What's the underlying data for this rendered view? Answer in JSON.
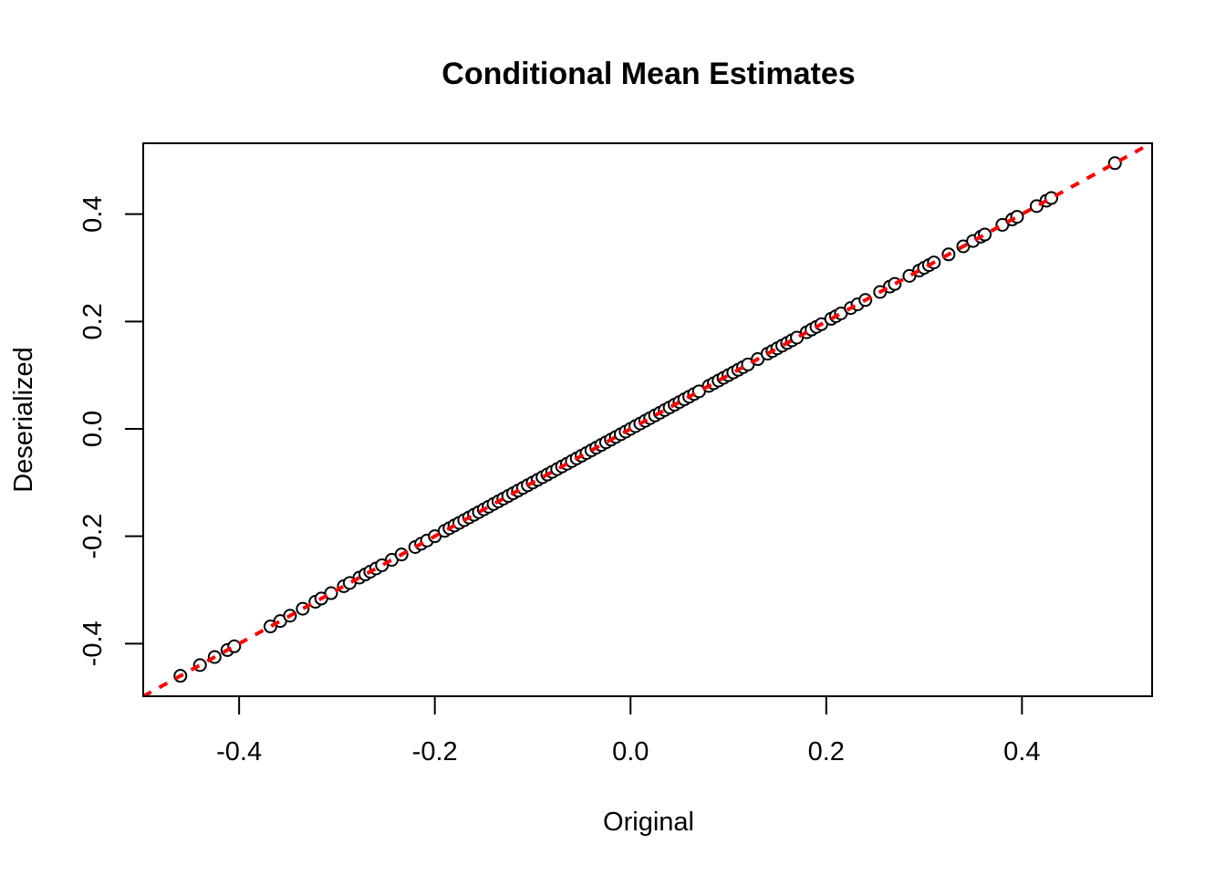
{
  "chart_data": {
    "type": "scatter",
    "title": "Conditional Mean Estimates",
    "xlabel": "Original",
    "ylabel": "Deserialized",
    "xlim": [
      -0.498,
      0.533
    ],
    "ylim": [
      -0.498,
      0.532
    ],
    "xticks": [
      -0.4,
      -0.2,
      0.0,
      0.2,
      0.4
    ],
    "xtick_labels": [
      "-0.4",
      "-0.2",
      "0.0",
      "0.2",
      "0.4"
    ],
    "yticks": [
      -0.4,
      -0.2,
      0.0,
      0.2,
      0.4
    ],
    "ytick_labels": [
      "-0.4",
      "-0.2",
      "0.0",
      "0.2",
      "0.4"
    ],
    "grid": false,
    "reference_line": {
      "intercept": 0,
      "slope": 1,
      "color": "#ff0000",
      "style": "dashed"
    },
    "point_color": "#000000",
    "x": [
      -0.46,
      -0.44,
      -0.425,
      -0.412,
      -0.405,
      -0.368,
      -0.358,
      -0.348,
      -0.335,
      -0.322,
      -0.316,
      -0.306,
      -0.293,
      -0.287,
      -0.277,
      -0.271,
      -0.266,
      -0.26,
      -0.254,
      -0.244,
      -0.234,
      -0.22,
      -0.214,
      -0.208,
      -0.2,
      -0.19,
      -0.185,
      -0.18,
      -0.175,
      -0.17,
      -0.165,
      -0.16,
      -0.155,
      -0.15,
      -0.145,
      -0.14,
      -0.135,
      -0.13,
      -0.125,
      -0.12,
      -0.115,
      -0.11,
      -0.105,
      -0.1,
      -0.095,
      -0.09,
      -0.085,
      -0.08,
      -0.075,
      -0.07,
      -0.065,
      -0.06,
      -0.055,
      -0.05,
      -0.045,
      -0.04,
      -0.035,
      -0.03,
      -0.025,
      -0.02,
      -0.015,
      -0.01,
      -0.005,
      0.0,
      0.005,
      0.01,
      0.015,
      0.02,
      0.025,
      0.03,
      0.035,
      0.04,
      0.045,
      0.05,
      0.055,
      0.06,
      0.065,
      0.07,
      0.08,
      0.085,
      0.09,
      0.095,
      0.1,
      0.105,
      0.11,
      0.115,
      0.12,
      0.13,
      0.14,
      0.145,
      0.15,
      0.155,
      0.16,
      0.165,
      0.17,
      0.18,
      0.185,
      0.19,
      0.195,
      0.205,
      0.21,
      0.215,
      0.225,
      0.232,
      0.24,
      0.255,
      0.265,
      0.27,
      0.285,
      0.295,
      0.3,
      0.305,
      0.31,
      0.325,
      0.34,
      0.35,
      0.358,
      0.362,
      0.38,
      0.39,
      0.395,
      0.415,
      0.425,
      0.43,
      0.495
    ],
    "y_equals_x": true
  }
}
